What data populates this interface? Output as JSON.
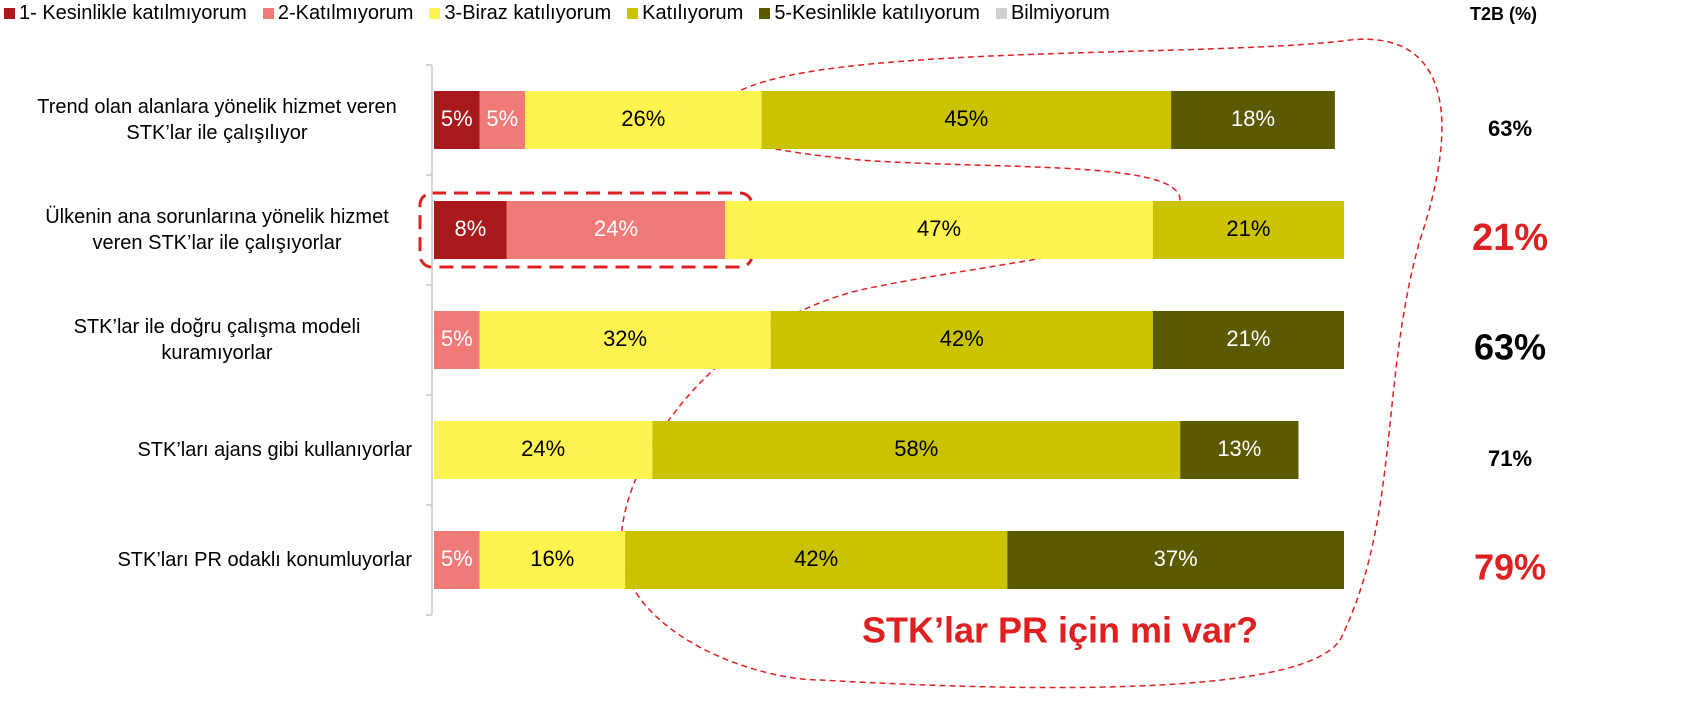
{
  "chart_data": {
    "type": "stacked_barh",
    "categories": [
      "Trend olan alanlara yönelik hizmet veren STK’lar ile çalışılıyor",
      "Ülkenin ana sorunlarına yönelik hizmet veren STK’lar ile çalışıyorlar",
      "STK’lar ile doğru çalışma modeli kuramıyorlar",
      "STK’ları ajans gibi kullanıyorlar",
      "STK’ları PR odaklı konumluyorlar"
    ],
    "series": [
      {
        "name": "1- Kesinlikle katılmıyorum",
        "color": "#a8191c",
        "label_color": "#ffffff",
        "values": [
          5,
          8,
          null,
          null,
          null
        ],
        "value_labels": [
          "5%",
          "8%",
          null,
          null,
          null
        ]
      },
      {
        "name": "2-Katılmıyorum",
        "color": "#f07a78",
        "label_color": "#ffffff",
        "values": [
          5,
          24,
          5,
          null,
          5
        ],
        "value_labels": [
          "5%",
          "24%",
          "5%",
          null,
          "5%"
        ]
      },
      {
        "name": "3-Biraz katılıyorum",
        "color": "#fff44f",
        "label_color": "#000000",
        "values": [
          26,
          47,
          32,
          24,
          16
        ],
        "value_labels": [
          "26%",
          "47%",
          "32%",
          "24%",
          "16%"
        ]
      },
      {
        "name": "Katılıyorum",
        "color": "#cbc300",
        "label_color": "#000000",
        "values": [
          45,
          21,
          42,
          58,
          42
        ],
        "value_labels": [
          "45%",
          "21%",
          "42%",
          "58%",
          "42%"
        ]
      },
      {
        "name": "5-Kesinlikle katılıyorum",
        "color": "#5c5a00",
        "label_color": "#ffffff",
        "values": [
          18,
          null,
          21,
          13,
          37
        ],
        "value_labels": [
          "18%",
          null,
          "21%",
          "13%",
          "37%"
        ]
      },
      {
        "name": "Bilmiyorum",
        "color": "#d0d0d0",
        "label_color": "#000000",
        "values": [
          null,
          null,
          null,
          null,
          null
        ],
        "value_labels": [
          null,
          null,
          null,
          null,
          null
        ]
      }
    ],
    "xlim": [
      0,
      100
    ],
    "t2b": {
      "title": "T2B (%)",
      "values": [
        63,
        21,
        63,
        71,
        79
      ],
      "value_labels": [
        "63%",
        "21%",
        "63%",
        "71%",
        "79%"
      ],
      "colors": [
        "#000000",
        "#e02020",
        "#000000",
        "#000000",
        "#e02020"
      ]
    },
    "annotation": "STK’lar PR için mi var?"
  }
}
